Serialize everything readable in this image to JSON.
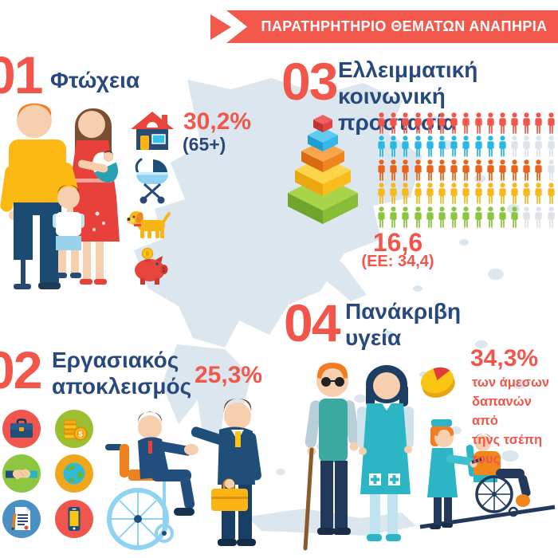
{
  "palette": {
    "red": "#f2564b",
    "navy": "#27497b",
    "banner_bg": "#f2594c",
    "map_fill": "#dce6ef",
    "teal": "#2cb5c4",
    "orange": "#f1861d",
    "yellow": "#fbb415",
    "green": "#8dc63f"
  },
  "header": {
    "title": "ΠΑΡΑΤΗΡΗΤΗΡΙΟ ΘΕΜΑΤΩΝ ΑΝΑΠΗΡΙΑ"
  },
  "sections": {
    "poverty": {
      "number": "01",
      "title": "Φτώχεια",
      "stat": "30,2%",
      "stat_note": "(65+)",
      "icons": [
        "house-icon",
        "baby-stroller-icon",
        "dog-icon",
        "piggy-bank-icon"
      ],
      "illustration": "family-with-amputee-father"
    },
    "work_exclusion": {
      "number": "02",
      "title_line1": "Εργασιακός",
      "title_line2": "αποκλεισμός",
      "stat": "25,3%",
      "icons": [
        "briefcase-icon",
        "coins-icon",
        "handshake-icon",
        "globe-icon",
        "contract-icon",
        "smartphone-icon"
      ],
      "illustration": "wheelchair-user-shaking-hands-with-businessman"
    },
    "social_protection": {
      "number": "03",
      "title_line1": "Ελλειμματική",
      "title_line2": "κοινωνική προστασία",
      "stat": "16,6",
      "stat_note": "(ΕΕ: 34,4)",
      "illustration": "stacked-pyramid-blocks"
    },
    "expensive_health": {
      "number": "04",
      "title_line1": "Πανάκριβη",
      "title_line2": "υγεία",
      "stat": "34,3%",
      "description_lines": [
        "των άμεσων",
        "δαπανών από",
        "τηνς τσέπη τους"
      ],
      "illustrations": [
        "pie-chart-icon",
        "blind-man-with-nurse",
        "nurse-pushing-wheelchair-on-ramp"
      ]
    }
  },
  "chart_data": {
    "type": "pictogram",
    "title": "Ελλειμματική κοινωνική προστασία",
    "columns": 15,
    "rows": [
      {
        "color": "#f2564b",
        "filled": 15,
        "total": 15
      },
      {
        "color": "#29b8e5",
        "filled": 11,
        "total": 15
      },
      {
        "color": "#e8641b",
        "filled": 14,
        "total": 15
      },
      {
        "color": "#f5b91e",
        "filled": 15,
        "total": 15
      },
      {
        "color": "#8cc63e",
        "filled": 12,
        "total": 15
      }
    ],
    "empty_color": "#dde3e8",
    "value_label": "16,6",
    "comparison_label": "(ΕΕ: 34,4)"
  }
}
